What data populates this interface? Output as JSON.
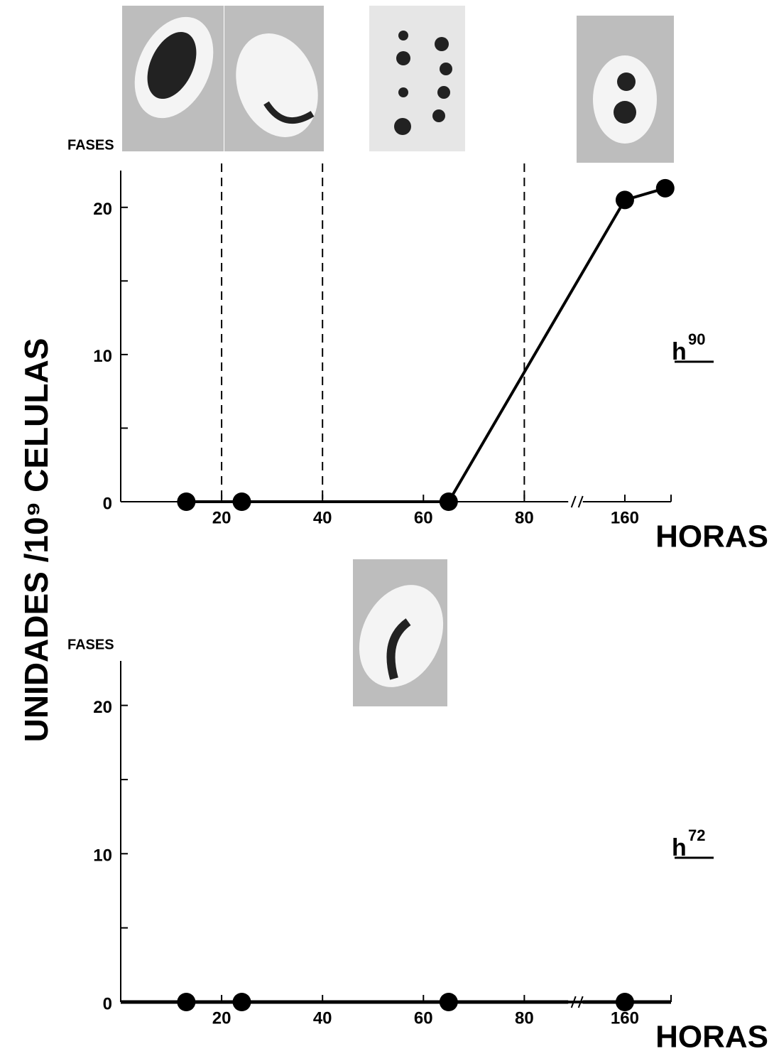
{
  "chart_data": [
    {
      "type": "line",
      "label": "FASES",
      "xlabel": "HORAS",
      "ylabel": "UNIDADES /10⁹ CELULAS",
      "annotation": [
        "h",
        "90"
      ],
      "x": [
        13,
        24,
        65,
        160,
        168
      ],
      "series": [
        {
          "color": "#000000",
          "values": [
            0,
            0,
            0,
            20.5,
            21.3
          ]
        }
      ],
      "xlim": [
        0,
        170
      ],
      "xbreak": [
        88,
        153
      ],
      "xticks": [
        20,
        40,
        60,
        80,
        160
      ],
      "ylim": [
        0,
        22.5
      ],
      "yticks": [
        0,
        10,
        20
      ],
      "yminor": [
        5,
        15
      ],
      "phase_lines": [
        20,
        40,
        80
      ]
    },
    {
      "type": "line",
      "label": "FASES",
      "xlabel": "HORAS",
      "annotation": [
        "h",
        "72"
      ],
      "x": [
        13,
        24,
        65,
        160
      ],
      "series": [
        {
          "color": "#000000",
          "values": [
            0,
            0,
            0,
            0
          ]
        }
      ],
      "xlim": [
        0,
        170
      ],
      "xbreak": [
        88,
        153
      ],
      "xticks": [
        20,
        40,
        60,
        80,
        160
      ],
      "ylim": [
        0,
        23
      ],
      "yticks": [
        0,
        10,
        20
      ],
      "yminor": [
        5,
        15
      ]
    }
  ]
}
